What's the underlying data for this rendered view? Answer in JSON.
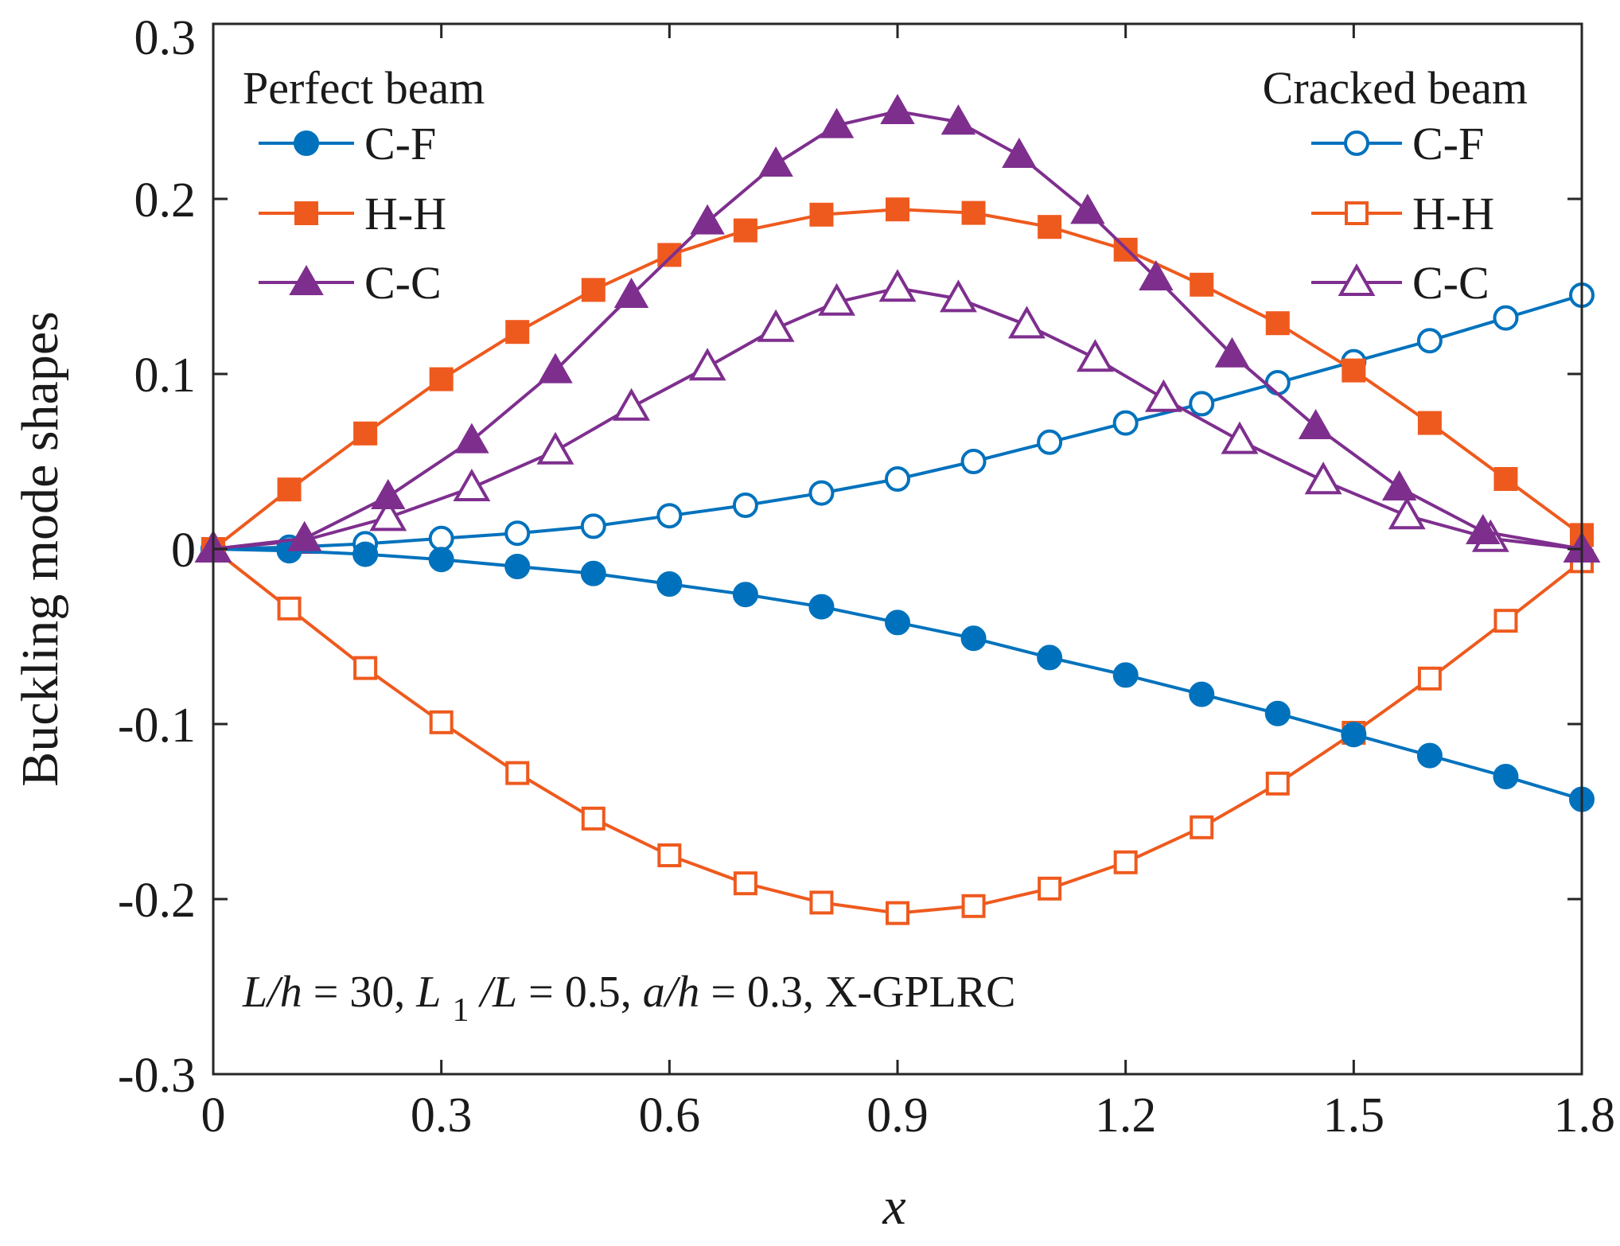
{
  "chart_data": {
    "type": "line",
    "xlabel": "x",
    "ylabel": "Buckling mode shapes",
    "xlim": [
      0,
      1.8
    ],
    "ylim": [
      -0.3,
      0.3
    ],
    "xticks": [
      "0",
      "0.3",
      "0.6",
      "0.9",
      "1.2",
      "1.5",
      "1.8"
    ],
    "yticks": [
      "-0.3",
      "-0.2",
      "-0.1",
      "0",
      "0.1",
      "0.2",
      "0.3"
    ],
    "legend_left_title": "Perfect beam",
    "legend_right_title": "Cracked beam",
    "annotation": {
      "p1": "L/h",
      "p2": " = 30, ",
      "p3": "L",
      "p4": "1",
      "p5": "/L",
      "p6": " = 0.5, ",
      "p7": "a/h",
      "p8": " = 0.3, X-GPLRC"
    },
    "series": [
      {
        "name": "C-F",
        "group": "Perfect beam",
        "color": "#0072BD",
        "marker": "circle",
        "filled": true,
        "x": [
          0,
          0.1,
          0.2,
          0.3,
          0.4,
          0.5,
          0.6,
          0.7,
          0.8,
          0.9,
          1.0,
          1.1,
          1.2,
          1.3,
          1.4,
          1.5,
          1.6,
          1.7,
          1.8
        ],
        "y": [
          0,
          -0.001,
          -0.003,
          -0.006,
          -0.01,
          -0.014,
          -0.02,
          -0.026,
          -0.033,
          -0.042,
          -0.051,
          -0.062,
          -0.072,
          -0.083,
          -0.094,
          -0.106,
          -0.118,
          -0.13,
          -0.143
        ]
      },
      {
        "name": "H-H",
        "group": "Perfect beam",
        "color": "#EE5A1E",
        "marker": "square",
        "filled": true,
        "x": [
          0,
          0.1,
          0.2,
          0.3,
          0.4,
          0.5,
          0.6,
          0.7,
          0.8,
          0.9,
          1.0,
          1.1,
          1.2,
          1.3,
          1.4,
          1.5,
          1.6,
          1.7,
          1.8
        ],
        "y": [
          0,
          0.034,
          0.066,
          0.097,
          0.124,
          0.148,
          0.168,
          0.182,
          0.191,
          0.194,
          0.192,
          0.184,
          0.171,
          0.151,
          0.129,
          0.102,
          0.072,
          0.04,
          0.008
        ]
      },
      {
        "name": "C-C",
        "group": "Perfect beam",
        "color": "#7E2F8E",
        "marker": "triangle",
        "filled": true,
        "x": [
          0,
          0.12,
          0.23,
          0.34,
          0.45,
          0.55,
          0.65,
          0.74,
          0.82,
          0.9,
          0.98,
          1.06,
          1.15,
          1.24,
          1.34,
          1.45,
          1.56,
          1.67,
          1.8
        ],
        "y": [
          0,
          0.006,
          0.03,
          0.062,
          0.102,
          0.145,
          0.187,
          0.22,
          0.242,
          0.25,
          0.244,
          0.225,
          0.193,
          0.155,
          0.111,
          0.07,
          0.035,
          0.01,
          0
        ]
      },
      {
        "name": "C-F",
        "group": "Cracked beam",
        "color": "#0072BD",
        "marker": "circle",
        "filled": false,
        "x": [
          0,
          0.1,
          0.2,
          0.3,
          0.4,
          0.5,
          0.6,
          0.7,
          0.8,
          0.9,
          1.0,
          1.1,
          1.2,
          1.3,
          1.4,
          1.5,
          1.6,
          1.7,
          1.8
        ],
        "y": [
          0,
          0.001,
          0.003,
          0.006,
          0.009,
          0.013,
          0.019,
          0.025,
          0.032,
          0.04,
          0.05,
          0.061,
          0.072,
          0.083,
          0.095,
          0.107,
          0.119,
          0.132,
          0.145
        ]
      },
      {
        "name": "H-H",
        "group": "Cracked beam",
        "color": "#EE5A1E",
        "marker": "square",
        "filled": false,
        "x": [
          0,
          0.1,
          0.2,
          0.3,
          0.4,
          0.5,
          0.6,
          0.7,
          0.8,
          0.9,
          1.0,
          1.1,
          1.2,
          1.3,
          1.4,
          1.5,
          1.6,
          1.7,
          1.8
        ],
        "y": [
          0,
          -0.034,
          -0.068,
          -0.099,
          -0.128,
          -0.154,
          -0.175,
          -0.191,
          -0.202,
          -0.208,
          -0.204,
          -0.194,
          -0.179,
          -0.159,
          -0.134,
          -0.105,
          -0.074,
          -0.041,
          -0.007
        ]
      },
      {
        "name": "C-C",
        "group": "Cracked beam",
        "color": "#7E2F8E",
        "marker": "triangle",
        "filled": false,
        "x": [
          0,
          0.12,
          0.23,
          0.34,
          0.45,
          0.55,
          0.65,
          0.74,
          0.82,
          0.9,
          0.98,
          1.07,
          1.16,
          1.25,
          1.35,
          1.46,
          1.57,
          1.68,
          1.8
        ],
        "y": [
          0,
          0.005,
          0.018,
          0.035,
          0.056,
          0.081,
          0.104,
          0.126,
          0.141,
          0.149,
          0.143,
          0.128,
          0.109,
          0.086,
          0.062,
          0.039,
          0.019,
          0.006,
          0
        ]
      }
    ]
  }
}
